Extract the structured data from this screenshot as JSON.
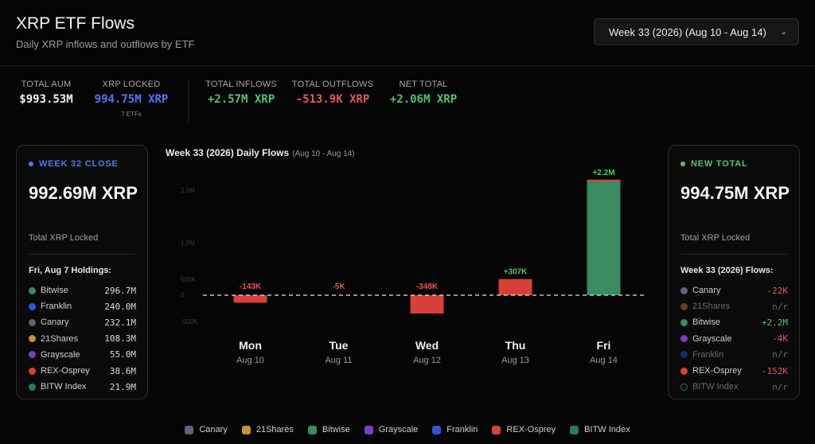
{
  "header": {
    "title": "XRP ETF Flows",
    "subtitle": "Daily XRP inflows and outflows by ETF"
  },
  "week_select": {
    "value": "Week 33 (2026) (Aug 10 - Aug 14)"
  },
  "stats": {
    "total_aum": {
      "label": "TOTAL AUM",
      "value": "$993.53M"
    },
    "xrp_locked": {
      "label": "XRP LOCKED",
      "value": "994.75M XRP",
      "sub": "7 ETFs"
    },
    "total_inflows": {
      "label": "TOTAL INFLOWS",
      "value": "+2.57M XRP"
    },
    "total_outflows": {
      "label": "TOTAL OUTFLOWS",
      "value": "-513.9K XRP"
    },
    "net_total": {
      "label": "NET TOTAL",
      "value": "+2.06M XRP"
    }
  },
  "colors": {
    "canary": "#5c6478",
    "21shares": "#c8922e",
    "bitwise": "#3a8a62",
    "grayscale": "#7a3fc0",
    "franklin": "#2f54d8",
    "rex_osprey": "#d8403a",
    "bitw_index": "#2f7a52",
    "positive": "#4cc66e",
    "negative": "#e05a52",
    "blue": "#4a78ff"
  },
  "left_card": {
    "head": "WEEK 32 CLOSE",
    "big": "992.69M XRP",
    "caption": "Total XRP Locked",
    "list_title": "Fri, Aug 7 Holdings:",
    "rows": [
      {
        "name": "Bitwise",
        "amount": "296.7M",
        "color": "#3a8a62"
      },
      {
        "name": "Franklin",
        "amount": "240.0M",
        "color": "#2f54d8"
      },
      {
        "name": "Canary",
        "amount": "232.1M",
        "color": "#5c6478"
      },
      {
        "name": "21Shares",
        "amount": "108.3M",
        "color": "#c8922e"
      },
      {
        "name": "Grayscale",
        "amount": "55.0M",
        "color": "#7a3fc0"
      },
      {
        "name": "REX-Osprey",
        "amount": "38.6M",
        "color": "#d8403a"
      },
      {
        "name": "BITW Index",
        "amount": "21.9M",
        "color": "#2f7a52"
      }
    ]
  },
  "right_card": {
    "head": "NEW TOTAL",
    "big": "994.75M XRP",
    "caption": "Total XRP Locked",
    "list_title": "Week 33 (2026) Flows:",
    "rows": [
      {
        "name": "Canary",
        "amount": "-22K",
        "color": "#5c6478",
        "tone": "neg"
      },
      {
        "name": "21Shares",
        "amount": "n/r",
        "color": "#c8922e",
        "tone": "dim"
      },
      {
        "name": "Bitwise",
        "amount": "+2.2M",
        "color": "#3a8a62",
        "tone": "pos"
      },
      {
        "name": "Grayscale",
        "amount": "-4K",
        "color": "#7a3fc0",
        "tone": "neg"
      },
      {
        "name": "Franklin",
        "amount": "n/r",
        "color": "#2f54d8",
        "tone": "dim"
      },
      {
        "name": "REX-Osprey",
        "amount": "-152K",
        "color": "#d8403a",
        "tone": "neg"
      },
      {
        "name": "BITW Index",
        "amount": "n/r",
        "color": "#2f7a52",
        "tone": "dim"
      }
    ]
  },
  "chart_data": {
    "type": "bar",
    "title": "Week 33 (2026) Daily Flows",
    "subtitle": "(Aug 10 - Aug 14)",
    "categories": [
      "Mon",
      "Tue",
      "Wed",
      "Thu",
      "Fri"
    ],
    "dates": [
      "Aug 10",
      "Aug 11",
      "Aug 12",
      "Aug 13",
      "Aug 14"
    ],
    "values": [
      -143000,
      -5000,
      -348000,
      307000,
      2200000
    ],
    "labels": [
      "-143K",
      "-5K",
      "-348K",
      "+307K",
      "+2.2M"
    ],
    "ylim": [
      -500000,
      2500000
    ],
    "ticks": [
      {
        "value": 2000000,
        "label": "2.0M"
      },
      {
        "value": 1000000,
        "label": "1.0M"
      },
      {
        "value": 500000,
        "label": "500K"
      },
      {
        "value": 0,
        "label": "0"
      },
      {
        "value": -500000,
        "label": "-500K"
      }
    ],
    "zero_line": "dashed",
    "grid": false
  },
  "legend": [
    {
      "name": "Canary",
      "color": "#5c6478"
    },
    {
      "name": "21Shares",
      "color": "#c8922e"
    },
    {
      "name": "Bitwise",
      "color": "#3a8a62"
    },
    {
      "name": "Grayscale",
      "color": "#7a3fc0"
    },
    {
      "name": "Franklin",
      "color": "#2f54d8"
    },
    {
      "name": "REX-Osprey",
      "color": "#d8403a"
    },
    {
      "name": "BITW Index",
      "color": "#2f7a52"
    }
  ]
}
